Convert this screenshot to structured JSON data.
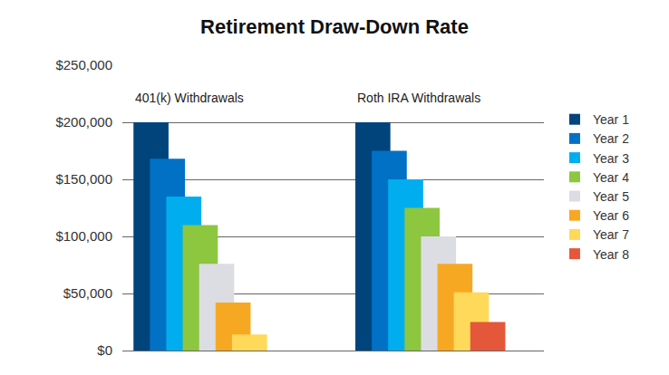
{
  "chart_data": {
    "type": "bar",
    "title": "Retirement Draw-Down Rate",
    "categories": [
      "401(k) Withdrawals",
      "Roth IRA Withdrawals"
    ],
    "series": [
      {
        "name": "Year 1",
        "color": "#00447c",
        "values": [
          200000,
          200000
        ]
      },
      {
        "name": "Year 2",
        "color": "#0071c5",
        "values": [
          168000,
          175000
        ]
      },
      {
        "name": "Year 3",
        "color": "#00aeef",
        "values": [
          135000,
          150000
        ]
      },
      {
        "name": "Year 4",
        "color": "#8dc63f",
        "values": [
          110000,
          125000
        ]
      },
      {
        "name": "Year 5",
        "color": "#dcdde3",
        "values": [
          76000,
          100000
        ]
      },
      {
        "name": "Year 6",
        "color": "#f7a823",
        "values": [
          42000,
          76000
        ]
      },
      {
        "name": "Year 7",
        "color": "#ffd95a",
        "values": [
          14000,
          51000
        ]
      },
      {
        "name": "Year 8",
        "color": "#e5573b",
        "values": [
          null,
          25000
        ]
      }
    ],
    "ylim": [
      0,
      250000
    ],
    "yticks": [
      {
        "value": 0,
        "label": "$0"
      },
      {
        "value": 50000,
        "label": "$50,000"
      },
      {
        "value": 100000,
        "label": "$100,000"
      },
      {
        "value": 150000,
        "label": "$150,000"
      },
      {
        "value": 200000,
        "label": "$200,000"
      },
      {
        "value": 250000,
        "label": "$250,000"
      }
    ],
    "grid": true,
    "legend": "right",
    "tick_labels": "y"
  }
}
